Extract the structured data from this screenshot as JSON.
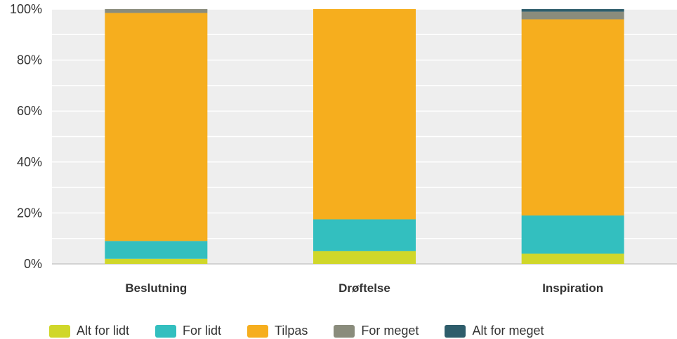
{
  "chart_data": {
    "type": "bar",
    "stacked": true,
    "categories": [
      "Beslutning",
      "Drøftelse",
      "Inspiration"
    ],
    "series": [
      {
        "name": "Alt for lidt",
        "color": "#d0d72a",
        "values": [
          2,
          5,
          4
        ]
      },
      {
        "name": "For lidt",
        "color": "#33bfbf",
        "values": [
          7,
          12.5,
          15
        ]
      },
      {
        "name": "Tilpas",
        "color": "#f6ae1e",
        "values": [
          89.5,
          82.5,
          77
        ]
      },
      {
        "name": "For meget",
        "color": "#8a8c7c",
        "values": [
          1.5,
          0,
          3
        ]
      },
      {
        "name": "Alt for meget",
        "color": "#2e5d6b",
        "values": [
          0,
          0,
          1
        ]
      }
    ],
    "y_ticks": [
      "0%",
      "20%",
      "40%",
      "60%",
      "80%",
      "100%"
    ],
    "ylim": [
      0,
      100
    ],
    "grid": true,
    "legend_position": "bottom",
    "plot_background": "#eeeeee"
  }
}
